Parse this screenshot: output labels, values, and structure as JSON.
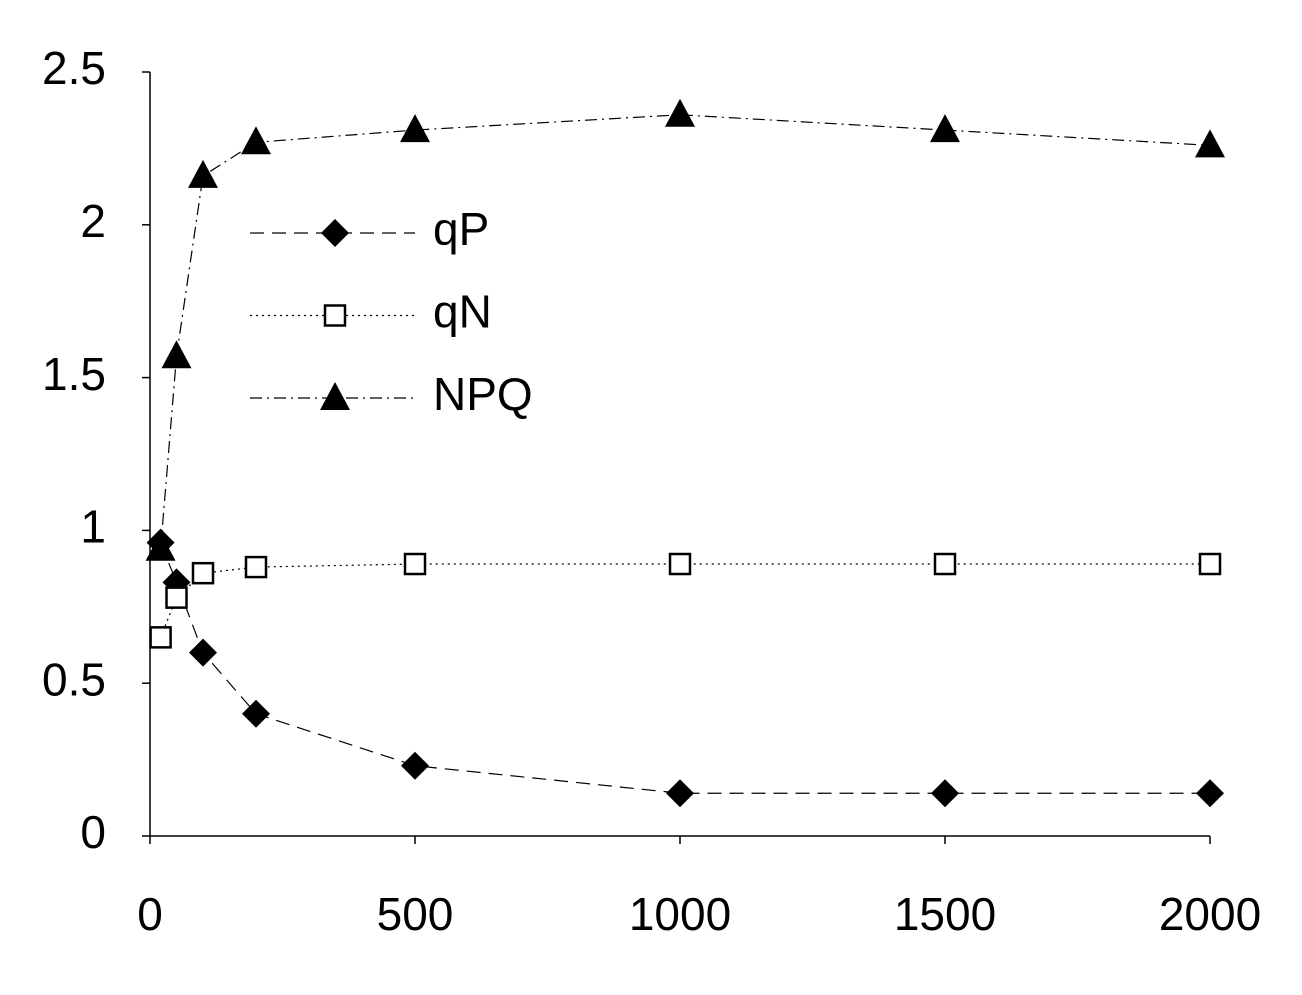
{
  "chart_data": {
    "type": "line",
    "x": [
      20,
      50,
      100,
      200,
      500,
      1000,
      1500,
      2000
    ],
    "series": [
      {
        "name": "qP",
        "color": "#000000",
        "marker": "diamond",
        "line_style": "dashed",
        "values": [
          0.96,
          0.83,
          0.6,
          0.4,
          0.23,
          0.14,
          0.14,
          0.14
        ]
      },
      {
        "name": "qN",
        "color": "#000000",
        "marker": "square",
        "line_style": "dotted",
        "values": [
          0.65,
          0.78,
          0.86,
          0.88,
          0.89,
          0.89,
          0.89,
          0.89
        ]
      },
      {
        "name": "NPQ",
        "color": "#000000",
        "marker": "triangle",
        "line_style": "dashdot",
        "values": [
          0.94,
          1.57,
          2.16,
          2.27,
          2.31,
          2.36,
          2.31,
          2.26
        ]
      }
    ],
    "xlim": [
      0,
      2000
    ],
    "xticks": [
      0,
      500,
      1000,
      1500,
      2000
    ],
    "ylim": [
      0,
      2.5
    ],
    "yticks": [
      0,
      0.5,
      1,
      1.5,
      2,
      2.5
    ],
    "grid": false,
    "legend": "upper left"
  }
}
